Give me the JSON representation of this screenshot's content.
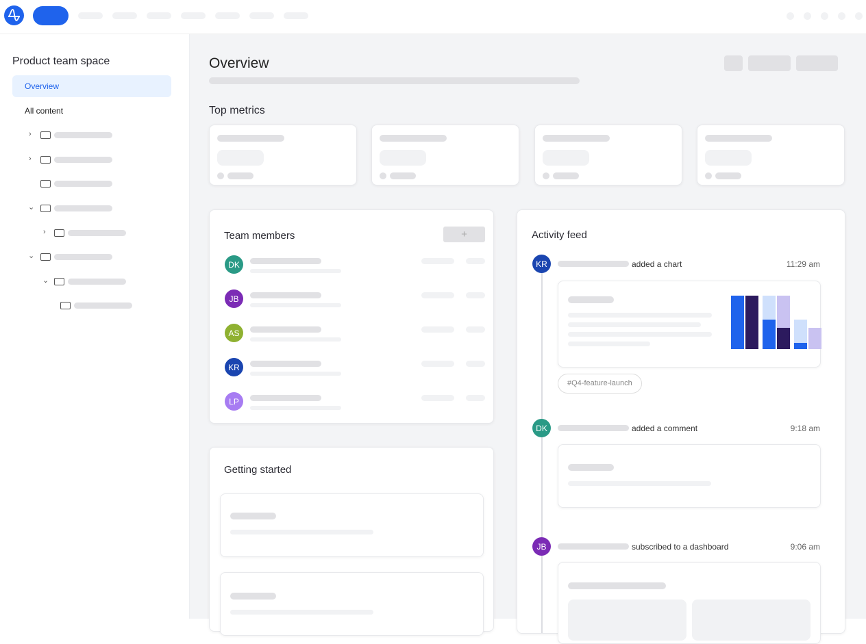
{
  "sidebar": {
    "title": "Product team space",
    "items": [
      {
        "label": "Overview",
        "active": true
      },
      {
        "label": "All content"
      }
    ]
  },
  "header": {
    "title": "Overview"
  },
  "sections": {
    "top_metrics": "Top metrics",
    "team_members": "Team members",
    "activity_feed": "Activity feed",
    "getting_started": "Getting started"
  },
  "team": {
    "add_label": "+",
    "members": [
      {
        "initials": "DK",
        "color": "#2a9a86"
      },
      {
        "initials": "JB",
        "color": "#7b2bb5"
      },
      {
        "initials": "AS",
        "color": "#8fb131"
      },
      {
        "initials": "KR",
        "color": "#1a45b0"
      },
      {
        "initials": "LP",
        "color": "#a77cf2"
      }
    ]
  },
  "feed": [
    {
      "initials": "KR",
      "color": "#1a45b0",
      "action": "added a chart",
      "time": "11:29 am",
      "tag": "#Q4-feature-launch"
    },
    {
      "initials": "DK",
      "color": "#2a9a86",
      "action": "added a comment",
      "time": "9:18 am"
    },
    {
      "initials": "JB",
      "color": "#7b2bb5",
      "action": "subscribed to a dashboard",
      "time": "9:06 am"
    }
  ],
  "colors": {
    "brand": "#1f63ec",
    "accent_light": "#e8f2ff"
  },
  "icons": {
    "logo": "amplitude-logo",
    "folder": "folder-icon",
    "chevron": "chevron-icon"
  }
}
